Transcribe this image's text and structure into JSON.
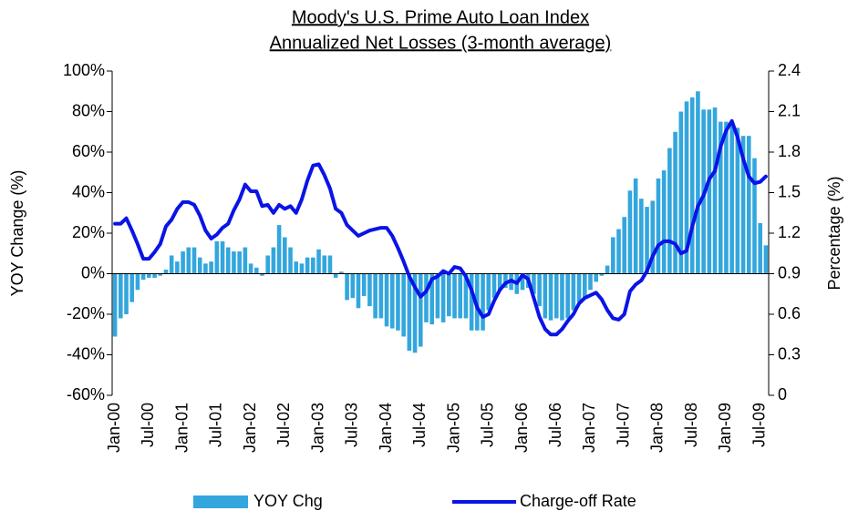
{
  "chart_data": {
    "type": "bar_line",
    "title": "Moody's U.S. Prime Auto Loan Index",
    "subtitle": "Annualized Net Losses (3-month average)",
    "y_label": "YOY Change (%)",
    "y2_label": "Percentage (%)",
    "categories": [
      "Jan-00",
      null,
      null,
      null,
      null,
      null,
      "Jul-00",
      null,
      null,
      null,
      null,
      null,
      "Jan-01",
      null,
      null,
      null,
      null,
      null,
      "Jul-01",
      null,
      null,
      null,
      null,
      null,
      "Jan-02",
      null,
      null,
      null,
      null,
      null,
      "Jul-02",
      null,
      null,
      null,
      null,
      null,
      "Jan-03",
      null,
      null,
      null,
      null,
      null,
      "Jul-03",
      null,
      null,
      null,
      null,
      null,
      "Jan-04",
      null,
      null,
      null,
      null,
      null,
      "Jul-04",
      null,
      null,
      null,
      null,
      null,
      "Jan-05",
      null,
      null,
      null,
      null,
      null,
      "Jul-05",
      null,
      null,
      null,
      null,
      null,
      "Jan-06",
      null,
      null,
      null,
      null,
      null,
      "Jul-06",
      null,
      null,
      null,
      null,
      null,
      "Jan-07",
      null,
      null,
      null,
      null,
      null,
      "Jul-07",
      null,
      null,
      null,
      null,
      null,
      "Jan-08",
      null,
      null,
      null,
      null,
      null,
      "Jul-08",
      null,
      null,
      null,
      null,
      null,
      "Jan-09",
      null,
      null,
      null,
      null,
      null,
      "Jul-09",
      null
    ],
    "series": [
      {
        "name": "YOY Chg",
        "color": "#33a6dd",
        "kind": "bar",
        "axis": "y",
        "values": [
          -31,
          -22,
          -20,
          -14,
          -8,
          -3,
          -2,
          -2,
          -1,
          2,
          9,
          6,
          11,
          13,
          13,
          8,
          5,
          6,
          16,
          16,
          13,
          11,
          11,
          13,
          5,
          3,
          -1,
          9,
          13,
          24,
          18,
          13,
          6,
          5,
          8,
          8,
          12,
          9,
          9,
          -2,
          1,
          -13,
          -12,
          -17,
          -11,
          -16,
          -22,
          -22,
          -26,
          -27,
          -28,
          -31,
          -38,
          -39,
          -36,
          -24,
          -25,
          -22,
          -24,
          -21,
          -22,
          -22,
          -22,
          -28,
          -28,
          -28,
          -18,
          -12,
          -8,
          -7,
          -8,
          -10,
          -8,
          -7,
          -10,
          -16,
          -22,
          -23,
          -22,
          -23,
          -22,
          -18,
          -14,
          -12,
          -8,
          -4,
          -1,
          4,
          18,
          22,
          28,
          41,
          47,
          37,
          33,
          36,
          47,
          51,
          62,
          70,
          80,
          85,
          87,
          90,
          81,
          81,
          82,
          75,
          75,
          75,
          72,
          68,
          68,
          57,
          25,
          14
        ]
      },
      {
        "name": "Charge-off Rate",
        "color": "#0a14e6",
        "kind": "line",
        "axis": "y2",
        "values": [
          1.27,
          1.27,
          1.31,
          1.22,
          1.12,
          1.01,
          1.01,
          1.06,
          1.12,
          1.25,
          1.3,
          1.38,
          1.43,
          1.43,
          1.41,
          1.33,
          1.22,
          1.16,
          1.19,
          1.24,
          1.27,
          1.37,
          1.45,
          1.56,
          1.51,
          1.51,
          1.4,
          1.41,
          1.35,
          1.41,
          1.38,
          1.4,
          1.35,
          1.45,
          1.59,
          1.7,
          1.71,
          1.63,
          1.53,
          1.38,
          1.35,
          1.26,
          1.22,
          1.18,
          1.2,
          1.22,
          1.23,
          1.24,
          1.24,
          1.18,
          1.09,
          0.99,
          0.88,
          0.8,
          0.73,
          0.77,
          0.86,
          0.88,
          0.92,
          0.9,
          0.95,
          0.94,
          0.88,
          0.78,
          0.65,
          0.58,
          0.6,
          0.7,
          0.78,
          0.83,
          0.85,
          0.83,
          0.89,
          0.86,
          0.72,
          0.58,
          0.49,
          0.45,
          0.45,
          0.49,
          0.55,
          0.6,
          0.68,
          0.72,
          0.74,
          0.76,
          0.71,
          0.63,
          0.57,
          0.56,
          0.6,
          0.77,
          0.82,
          0.85,
          0.92,
          1.03,
          1.11,
          1.14,
          1.14,
          1.12,
          1.05,
          1.07,
          1.25,
          1.4,
          1.48,
          1.6,
          1.66,
          1.84,
          1.96,
          2.03,
          1.91,
          1.75,
          1.62,
          1.57,
          1.58,
          1.62
        ]
      }
    ],
    "ylim": [
      -60,
      100
    ],
    "yticks": [
      {
        "value": -60,
        "label": "-60%"
      },
      {
        "value": -40,
        "label": "-40%"
      },
      {
        "value": -20,
        "label": "-20%"
      },
      {
        "value": 0,
        "label": "0%"
      },
      {
        "value": 20,
        "label": "20%"
      },
      {
        "value": 40,
        "label": "40%"
      },
      {
        "value": 60,
        "label": "60%"
      },
      {
        "value": 80,
        "label": "80%"
      },
      {
        "value": 100,
        "label": "100%"
      }
    ],
    "y2lim": [
      0,
      2.4
    ],
    "y2ticks": [
      0,
      0.3,
      0.6,
      0.9,
      1.2,
      1.5,
      1.8,
      2.1,
      2.4
    ],
    "legend": "bottom"
  }
}
